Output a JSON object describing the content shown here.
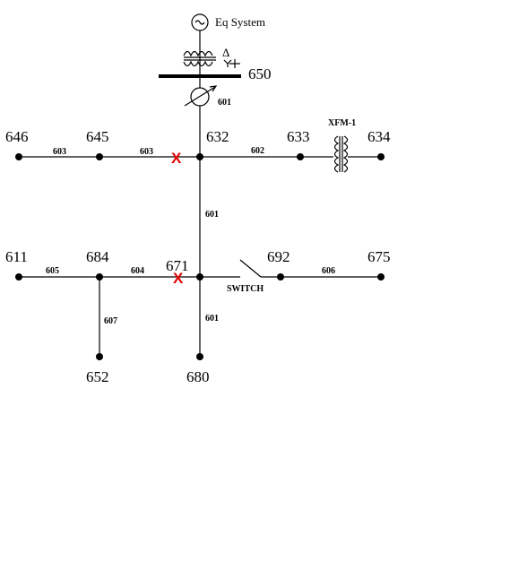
{
  "source": {
    "label": "Eq System"
  },
  "buses": {
    "b650": "650",
    "b646": "646",
    "b645": "645",
    "b632": "632",
    "b633": "633",
    "b634": "634",
    "b611": "611",
    "b684": "684",
    "b671": "671",
    "b692": "692",
    "b675": "675",
    "b652": "652",
    "b680": "680"
  },
  "lines": {
    "l650_632": "601",
    "l646_645": "603",
    "l645_632": "603",
    "l632_633": "602",
    "l632_671": "601",
    "l611_684": "605",
    "l684_671": "604",
    "l692_675": "606",
    "l684_652": "607",
    "l671_680": "601"
  },
  "devices": {
    "transformer": "XFM-1",
    "switch": "SWITCH",
    "substation_winding": "Δ"
  },
  "faults": {
    "f1": "X",
    "f2": "X"
  }
}
